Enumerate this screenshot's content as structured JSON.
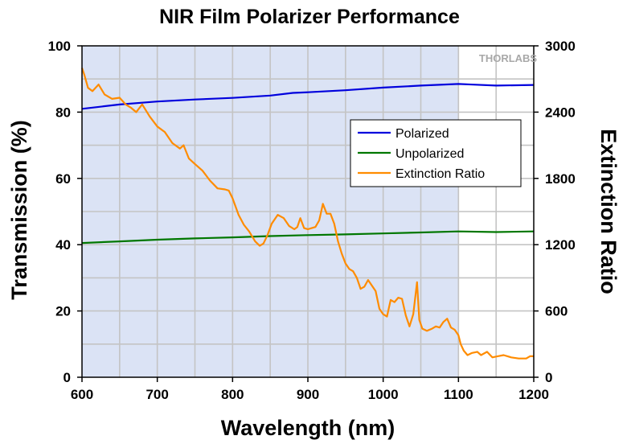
{
  "chart_data": {
    "type": "line",
    "title": "NIR Film Polarizer Performance",
    "xlabel": "Wavelength (nm)",
    "ylabel": "Transmission (%)",
    "y2label": "Extinction Ratio",
    "xlim": [
      600,
      1200
    ],
    "ylim": [
      0,
      100
    ],
    "y2lim": [
      0,
      3000
    ],
    "xticks": [
      "600",
      "700",
      "800",
      "900",
      "1000",
      "1100",
      "1200"
    ],
    "yticks": [
      "0",
      "20",
      "40",
      "60",
      "80",
      "100"
    ],
    "y2ticks": [
      "0",
      "600",
      "1200",
      "1800",
      "2400",
      "3000"
    ],
    "shaded_region": [
      600,
      1100
    ],
    "watermark": "THORLABS",
    "legend": [
      "Polarized",
      "Unpolarized",
      "Extinction Ratio"
    ],
    "series": [
      {
        "name": "Polarized",
        "axis": "left",
        "color": "#0000dd",
        "x": [
          600,
          650,
          700,
          750,
          800,
          850,
          880,
          900,
          950,
          1000,
          1050,
          1100,
          1120,
          1150,
          1200
        ],
        "y": [
          81,
          82.3,
          83.2,
          83.8,
          84.3,
          85.0,
          85.8,
          86.0,
          86.6,
          87.4,
          88.0,
          88.5,
          88.3,
          88.0,
          88.2
        ]
      },
      {
        "name": "Unpolarized",
        "axis": "left",
        "color": "#007700",
        "x": [
          600,
          650,
          700,
          750,
          800,
          850,
          900,
          950,
          1000,
          1050,
          1100,
          1150,
          1200
        ],
        "y": [
          40.5,
          41.0,
          41.5,
          41.9,
          42.2,
          42.6,
          42.9,
          43.1,
          43.4,
          43.7,
          44.0,
          43.8,
          44.0
        ]
      },
      {
        "name": "Extinction Ratio",
        "axis": "right",
        "color": "#ff8c00",
        "x": [
          600,
          603,
          608,
          614,
          622,
          630,
          640,
          650,
          658,
          665,
          672,
          680,
          690,
          700,
          710,
          720,
          730,
          735,
          742,
          750,
          760,
          770,
          780,
          790,
          795,
          800,
          808,
          815,
          822,
          830,
          836,
          841,
          846,
          852,
          860,
          868,
          875,
          882,
          886,
          890,
          895,
          900,
          905,
          910,
          915,
          920,
          925,
          930,
          935,
          940,
          945,
          950,
          955,
          960,
          965,
          970,
          975,
          980,
          985,
          990,
          995,
          1000,
          1005,
          1010,
          1015,
          1020,
          1025,
          1030,
          1035,
          1040,
          1045,
          1048,
          1052,
          1058,
          1065,
          1070,
          1075,
          1080,
          1085,
          1090,
          1095,
          1100,
          1103,
          1107,
          1112,
          1118,
          1125,
          1130,
          1138,
          1145,
          1152,
          1160,
          1170,
          1180,
          1190,
          1195,
          1200
        ],
        "y": [
          2800,
          2740,
          2620,
          2590,
          2650,
          2560,
          2520,
          2530,
          2470,
          2440,
          2400,
          2470,
          2360,
          2270,
          2220,
          2120,
          2070,
          2100,
          1980,
          1930,
          1870,
          1780,
          1710,
          1700,
          1690,
          1620,
          1470,
          1380,
          1320,
          1230,
          1190,
          1210,
          1280,
          1390,
          1470,
          1440,
          1370,
          1340,
          1360,
          1440,
          1350,
          1340,
          1350,
          1360,
          1420,
          1570,
          1480,
          1480,
          1390,
          1230,
          1120,
          1030,
          980,
          960,
          900,
          800,
          820,
          880,
          830,
          780,
          620,
          570,
          550,
          700,
          680,
          720,
          710,
          560,
          460,
          570,
          860,
          520,
          440,
          420,
          440,
          460,
          450,
          500,
          530,
          450,
          430,
          380,
          300,
          240,
          200,
          220,
          230,
          200,
          230,
          180,
          190,
          200,
          180,
          170,
          170,
          190,
          190
        ]
      }
    ]
  }
}
